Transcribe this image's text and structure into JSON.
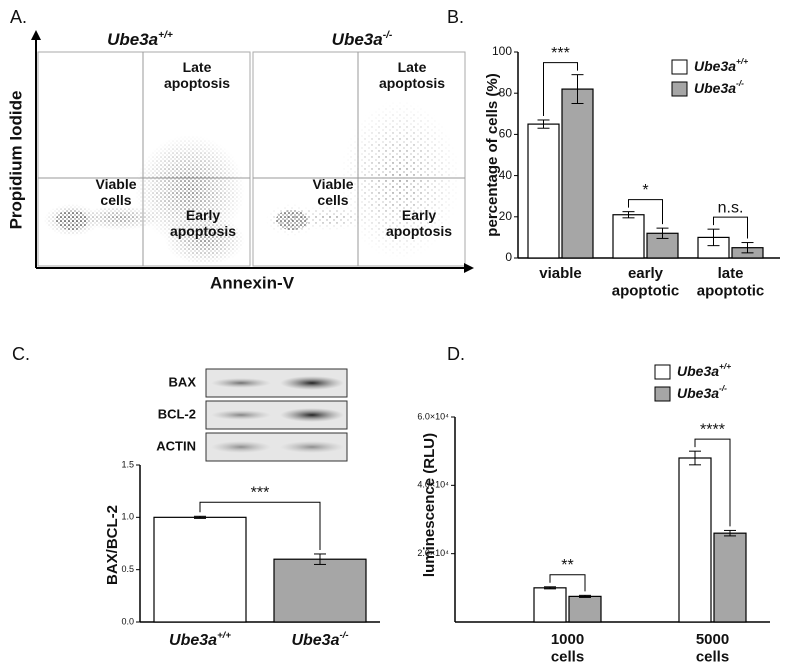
{
  "panel_a": {
    "label": "A.",
    "titles": [
      "Ube3a+/+",
      "Ube3a-/-"
    ],
    "ylabel": "Propidium Iodide",
    "xlabel": "Annexin-V",
    "quadrants": [
      {
        "text": "Late apoptosis",
        "color": "#1fae4b"
      },
      {
        "text": "Viable cells",
        "color": "#1b78c8"
      },
      {
        "text": "Early apoptosis",
        "color": "#e4202a"
      }
    ]
  },
  "blot": {
    "rows": [
      "BAX",
      "BCL-2",
      "ACTIN"
    ]
  },
  "chart_data": [
    {
      "type": "bar",
      "label": "B.",
      "ylabel": "percentage of cells (%)",
      "categories": [
        "viable",
        "early apoptotic",
        "late apoptotic"
      ],
      "series": [
        {
          "name": "Ube3a+/+",
          "color": "#ffffff",
          "values": [
            65,
            21,
            10
          ],
          "errors": [
            2,
            1.5,
            4
          ]
        },
        {
          "name": "Ube3a-/-",
          "color": "#a6a6a6",
          "values": [
            82,
            12,
            5
          ],
          "errors": [
            7,
            2.5,
            2.5
          ]
        }
      ],
      "significance": [
        "***",
        "*",
        "n.s."
      ],
      "ylim": [
        0,
        100
      ],
      "yticks": [
        0,
        20,
        40,
        60,
        80,
        100
      ]
    },
    {
      "type": "bar",
      "label": "C.",
      "ylabel": "BAX/BCL-2",
      "categories": [
        "Ube3a+/+",
        "Ube3a-/-"
      ],
      "values": [
        1.0,
        0.6
      ],
      "errors": [
        0.01,
        0.05
      ],
      "colors": [
        "#ffffff",
        "#a6a6a6"
      ],
      "significance": "***",
      "ylim": [
        0,
        1.5
      ],
      "yticks": [
        {
          "value": 0,
          "label": "0.0"
        },
        0.5,
        {
          "value": 1,
          "label": "1.0"
        },
        1.5
      ]
    },
    {
      "type": "bar",
      "label": "D.",
      "ylabel": "luminescence (RLU)",
      "categories": [
        "1000 cells",
        "5000 cells"
      ],
      "series": [
        {
          "name": "Ube3a+/+",
          "color": "#ffffff",
          "values": [
            10000,
            48000
          ],
          "errors": [
            300,
            2000
          ]
        },
        {
          "name": "Ube3a-/-",
          "color": "#a6a6a6",
          "values": [
            7500,
            26000
          ],
          "errors": [
            300,
            800
          ]
        }
      ],
      "significance": [
        "**",
        "****"
      ],
      "ylim": [
        0,
        60000
      ],
      "yticks": [
        {
          "value": 20000,
          "label": "2.0×10⁴"
        },
        {
          "value": 40000,
          "label": "4.0×10⁴"
        },
        {
          "value": 60000,
          "label": "6.0×10⁴"
        }
      ]
    }
  ]
}
